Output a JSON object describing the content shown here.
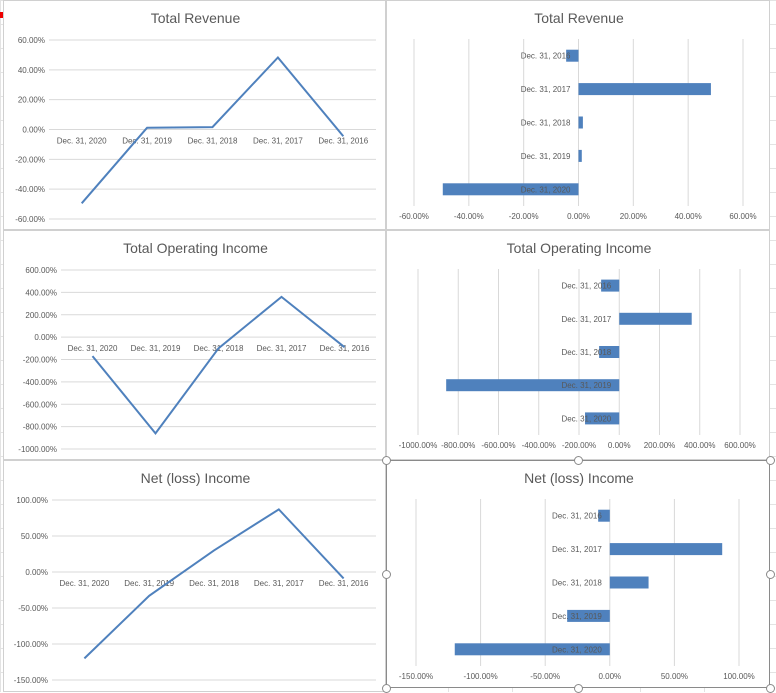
{
  "chart_data": [
    {
      "id": "revenue-line",
      "type": "line",
      "title": "Total Revenue",
      "categories": [
        "Dec. 31, 2020",
        "Dec. 31, 2019",
        "Dec. 31, 2018",
        "Dec. 31, 2017",
        "Dec. 31, 2016"
      ],
      "values": [
        -49.5,
        1.2,
        1.6,
        48.3,
        -4.5
      ],
      "ylim": [
        -60,
        60
      ],
      "yticks": [
        60,
        40,
        20,
        0,
        -20,
        -40,
        -60
      ],
      "ytick_labels": [
        "60.00%",
        "40.00%",
        "20.00%",
        "0.00%",
        "-20.00%",
        "-40.00%",
        "-60.00%"
      ],
      "grid": true,
      "color": "#4f81bd"
    },
    {
      "id": "revenue-bar",
      "type": "bar",
      "orientation": "horizontal",
      "title": "Total Revenue",
      "categories": [
        "Dec. 31, 2016",
        "Dec. 31, 2017",
        "Dec. 31, 2018",
        "Dec. 31, 2019",
        "Dec. 31, 2020"
      ],
      "values": [
        -4.5,
        48.3,
        1.6,
        1.2,
        -49.5
      ],
      "xlim": [
        -60,
        60
      ],
      "xticks": [
        -60,
        -40,
        -20,
        0,
        20,
        40,
        60
      ],
      "xtick_labels": [
        "-60.00%",
        "-40.00%",
        "-20.00%",
        "0.00%",
        "20.00%",
        "40.00%",
        "60.00%"
      ],
      "grid": true,
      "color": "#4f81bd"
    },
    {
      "id": "operating-line",
      "type": "line",
      "title": "Total Operating Income",
      "categories": [
        "Dec. 31, 2020",
        "Dec. 31, 2019",
        "Dec. 31, 2018",
        "Dec. 31, 2017",
        "Dec. 31, 2016"
      ],
      "values": [
        -170,
        -860,
        -100,
        360,
        -90
      ],
      "ylim": [
        -1000,
        600
      ],
      "yticks": [
        600,
        400,
        200,
        0,
        -200,
        -400,
        -600,
        -800,
        -1000
      ],
      "ytick_labels": [
        "600.00%",
        "400.00%",
        "200.00%",
        "0.00%",
        "-200.00%",
        "-400.00%",
        "-600.00%",
        "-800.00%",
        "-1000.00%"
      ],
      "grid": true,
      "color": "#4f81bd"
    },
    {
      "id": "operating-bar",
      "type": "bar",
      "orientation": "horizontal",
      "title": "Total Operating Income",
      "categories": [
        "Dec. 31, 2016",
        "Dec. 31, 2017",
        "Dec. 31, 2018",
        "Dec. 31, 2019",
        "Dec. 31, 2020"
      ],
      "values": [
        -90,
        360,
        -100,
        -860,
        -170
      ],
      "xlim": [
        -1000,
        600
      ],
      "xticks": [
        -1000,
        -800,
        -600,
        -400,
        -200,
        0,
        200,
        400,
        600
      ],
      "xtick_labels": [
        "-1000.00%",
        "-800.00%",
        "-600.00%",
        "-400.00%",
        "-200.00%",
        "0.00%",
        "200.00%",
        "400.00%",
        "600.00%"
      ],
      "grid": true,
      "color": "#4f81bd"
    },
    {
      "id": "net-line",
      "type": "line",
      "title": "Net (loss) Income",
      "categories": [
        "Dec. 31, 2020",
        "Dec. 31, 2019",
        "Dec. 31, 2018",
        "Dec. 31, 2017",
        "Dec. 31, 2016"
      ],
      "values": [
        -120,
        -33,
        30,
        87,
        -9
      ],
      "ylim": [
        -150,
        100
      ],
      "yticks": [
        100,
        50,
        0,
        -50,
        -100,
        -150
      ],
      "ytick_labels": [
        "100.00%",
        "50.00%",
        "0.00%",
        "-50.00%",
        "-100.00%",
        "-150.00%"
      ],
      "grid": true,
      "color": "#4f81bd"
    },
    {
      "id": "net-bar",
      "type": "bar",
      "orientation": "horizontal",
      "title": "Net (loss) Income",
      "categories": [
        "Dec. 31, 2016",
        "Dec. 31, 2017",
        "Dec. 31, 2018",
        "Dec. 31, 2019",
        "Dec. 31, 2020"
      ],
      "values": [
        -9,
        87,
        30,
        -33,
        -120
      ],
      "xlim": [
        -150,
        100
      ],
      "xticks": [
        -150,
        -100,
        -50,
        0,
        50,
        100
      ],
      "xtick_labels": [
        "-150.00%",
        "-100.00%",
        "-50.00%",
        "0.00%",
        "50.00%",
        "100.00%"
      ],
      "grid": true,
      "color": "#4f81bd",
      "selected": true
    }
  ]
}
